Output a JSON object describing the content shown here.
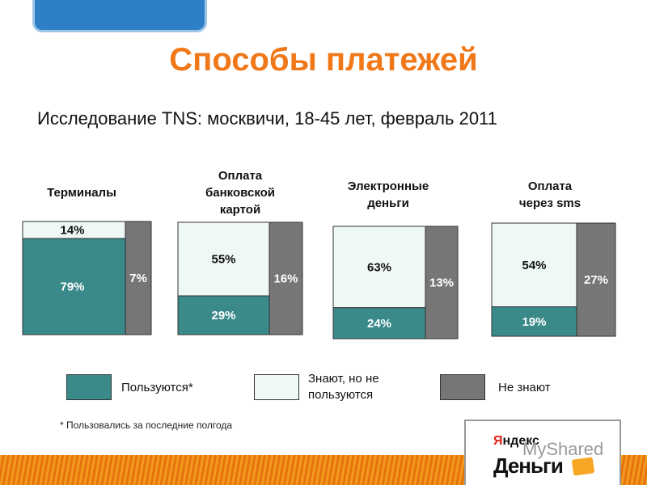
{
  "title": "Способы платежей",
  "subtitle": "Исследование TNS: москвичи, 18-45 лет, февраль 2011",
  "colors": {
    "use": "#3a8a8a",
    "know": "#eef8f5",
    "unknown": "#767676",
    "accent": "#f07818"
  },
  "chart_data": {
    "type": "bar",
    "stacked": true,
    "categories": [
      "Терминалы",
      "Оплата банковской картой",
      "Электронные деньги",
      "Оплата через sms"
    ],
    "series": [
      {
        "name": "Пользуются*",
        "values": [
          79,
          29,
          24,
          19
        ],
        "labels": [
          "79%",
          "29%",
          "24%",
          "19%"
        ]
      },
      {
        "name": "Знают, но не пользуются",
        "values": [
          14,
          55,
          63,
          54
        ],
        "labels": [
          "14%",
          "55%",
          "63%",
          "54%"
        ]
      },
      {
        "name": "Не знают",
        "values": [
          7,
          16,
          13,
          27
        ],
        "labels": [
          "7%",
          "16%",
          "13%",
          "27%"
        ]
      }
    ],
    "unit": "%"
  },
  "legend": {
    "use": "Пользуются*",
    "know_line1": "Знают, но не",
    "know_line2": "пользуются",
    "unknown": "Не знают"
  },
  "footnote": "* Пользовались за последние полгода",
  "logo": {
    "top_y": "Я",
    "top_rest": "ндекс",
    "main": "Деньги",
    "watermark": "MyShared"
  },
  "category_lines": [
    [
      "Терминалы"
    ],
    [
      "Оплата",
      "банковской",
      "картой"
    ],
    [
      "Электронные",
      "деньги"
    ],
    [
      "Оплата",
      "через sms"
    ]
  ]
}
